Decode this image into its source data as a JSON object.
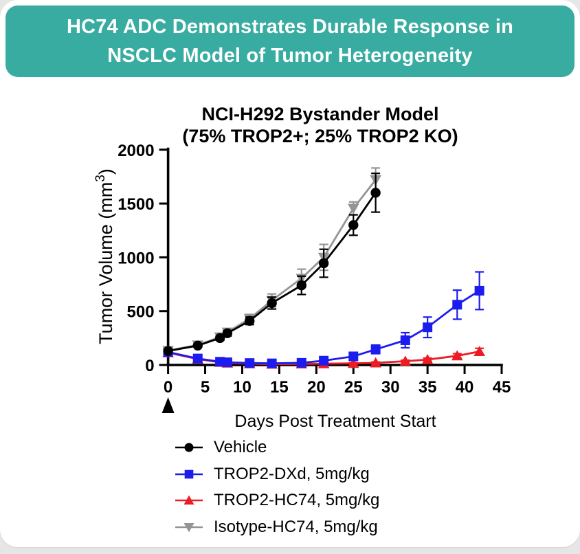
{
  "banner": {
    "line1": "HC74 ADC Demonstrates Durable Response in",
    "line2": "NSCLC Model of Tumor Heterogeneity",
    "bg_color": "#38ACA1",
    "text_color": "#FFFFFF"
  },
  "chart_data": {
    "type": "line",
    "title_line1": "NCI-H292 Bystander Model",
    "title_line2": "(75% TROP2+; 25% TROP2 KO)",
    "xlabel": "Days Post Treatment Start",
    "ylabel": "Tumor Volume (mm³)",
    "ylabel_parts": {
      "base": "Tumor Volume (mm",
      "sup": "3",
      "end": ")"
    },
    "xlim": [
      0,
      45
    ],
    "ylim": [
      0,
      2000
    ],
    "xticks": [
      0,
      5,
      10,
      15,
      20,
      25,
      30,
      35,
      40,
      45
    ],
    "yticks": [
      0,
      500,
      1000,
      1500,
      2000
    ],
    "grid": false,
    "legend_position": "bottom-left",
    "treatment_start_marker_day": 0,
    "error_bars": "sem",
    "series": [
      {
        "name": "Vehicle",
        "color": "#000000",
        "marker": "circle",
        "x": [
          0,
          4,
          7,
          8,
          11,
          14,
          18,
          21,
          25,
          28
        ],
        "y": [
          130,
          180,
          250,
          295,
          410,
          575,
          740,
          945,
          1300,
          1600
        ],
        "sem": [
          8,
          12,
          20,
          25,
          35,
          55,
          85,
          130,
          95,
          180
        ]
      },
      {
        "name": "TROP2-DXd, 5mg/kg",
        "color": "#1C1CEE",
        "marker": "square",
        "x": [
          0,
          4,
          7,
          8,
          11,
          14,
          18,
          21,
          25,
          28,
          32,
          35,
          39,
          42
        ],
        "y": [
          120,
          60,
          30,
          25,
          18,
          15,
          20,
          40,
          80,
          145,
          230,
          350,
          560,
          690
        ],
        "sem": [
          8,
          8,
          6,
          6,
          5,
          5,
          8,
          15,
          30,
          40,
          70,
          95,
          135,
          175
        ]
      },
      {
        "name": "TROP2-HC74, 5mg/kg",
        "color": "#EC1C24",
        "marker": "triangle-up",
        "x": [
          0,
          4,
          7,
          8,
          11,
          14,
          18,
          21,
          25,
          28,
          32,
          35,
          39,
          42
        ],
        "y": [
          115,
          55,
          25,
          18,
          12,
          8,
          10,
          12,
          15,
          20,
          35,
          50,
          85,
          125
        ],
        "sem": [
          8,
          6,
          5,
          4,
          4,
          4,
          4,
          5,
          6,
          8,
          10,
          14,
          20,
          30
        ]
      },
      {
        "name": "Isotype-HC74, 5mg/kg",
        "color": "#949494",
        "marker": "triangle-down",
        "x": [
          0,
          4,
          7,
          8,
          11,
          14,
          18,
          21,
          25,
          28
        ],
        "y": [
          135,
          185,
          260,
          305,
          430,
          600,
          805,
          1000,
          1455,
          1720
        ],
        "sem": [
          8,
          12,
          20,
          25,
          40,
          60,
          85,
          120,
          60,
          110
        ]
      }
    ]
  }
}
